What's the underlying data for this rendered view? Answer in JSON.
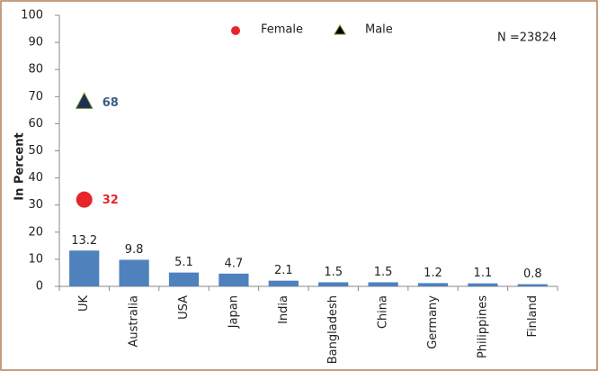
{
  "chart_data": {
    "type": "bar",
    "y_label": "In Percent",
    "annotation": "N =23824",
    "categories": [
      "UK",
      "Australia",
      "USA",
      "Japan",
      "India",
      "Bangladesh",
      "China",
      "Germany",
      "Philippines",
      "Finland"
    ],
    "values": [
      13.2,
      9.8,
      5.1,
      4.7,
      2.1,
      1.5,
      1.5,
      1.2,
      1.1,
      0.8
    ],
    "color": "#4f81bd",
    "series": [
      {
        "name": "Female",
        "color": "#e8252a",
        "marker": "circle",
        "values": [
          32,
          null,
          null,
          null,
          null,
          null,
          null,
          null,
          null,
          null
        ]
      },
      {
        "name": "Male",
        "color": "#1f2d5a",
        "marker": "triangle",
        "values": [
          68,
          null,
          null,
          null,
          null,
          null,
          null,
          null,
          null,
          null
        ]
      }
    ],
    "ylim": [
      0,
      100
    ],
    "yticks": [
      0,
      10,
      20,
      30,
      40,
      50,
      60,
      70,
      80,
      90,
      100
    ],
    "grid": false
  }
}
